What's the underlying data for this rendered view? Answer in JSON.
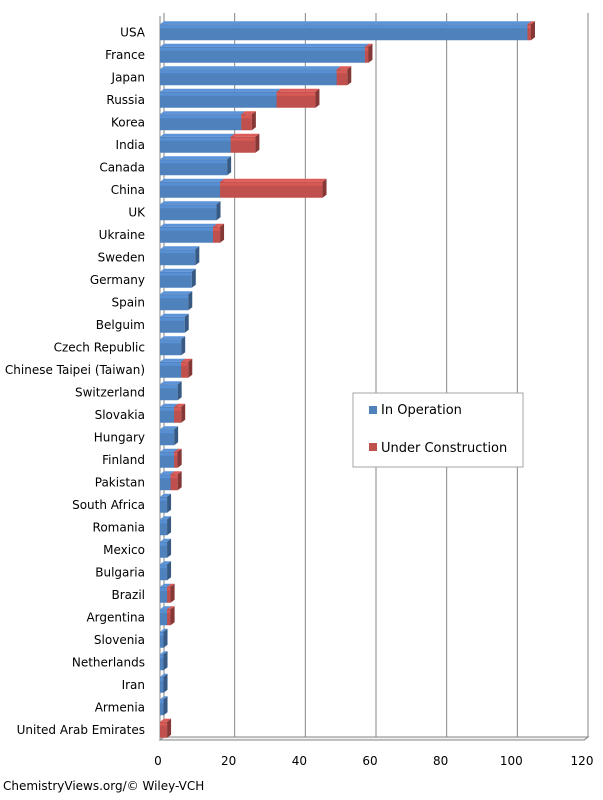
{
  "chart_data": {
    "type": "bar",
    "orientation": "horizontal",
    "stacked": true,
    "categories": [
      "USA",
      "France",
      "Japan",
      "Russia",
      "Korea",
      "India",
      "Canada",
      "China",
      "UK",
      "Ukraine",
      "Sweden",
      "Germany",
      "Spain",
      "Belguim",
      "Czech Republic",
      "Chinese Taipei (Taiwan)",
      "Switzerland",
      "Slovakia",
      "Hungary",
      "Finland",
      "Pakistan",
      "South Africa",
      "Romania",
      "Mexico",
      "Bulgaria",
      "Brazil",
      "Argentina",
      "Slovenia",
      "Netherlands",
      "Iran",
      "Armenia",
      "United Arab Emirates"
    ],
    "series": [
      {
        "name": "In Operation",
        "color": "#4f81bd",
        "values": [
          104,
          58,
          50,
          33,
          23,
          20,
          19,
          17,
          16,
          15,
          10,
          9,
          8,
          7,
          6,
          6,
          5,
          4,
          4,
          4,
          3,
          2,
          2,
          2,
          2,
          2,
          2,
          1,
          1,
          1,
          1,
          0
        ]
      },
      {
        "name": "Under Construction",
        "color": "#c0504d",
        "values": [
          1,
          1,
          3,
          11,
          3,
          7,
          0,
          29,
          0,
          2,
          0,
          0,
          0,
          0,
          0,
          2,
          0,
          2,
          0,
          1,
          2,
          0,
          0,
          0,
          0,
          1,
          1,
          0,
          0,
          0,
          0,
          2
        ]
      }
    ],
    "xlim": [
      0,
      120
    ],
    "xticks": [
      "0",
      "20",
      "40",
      "60",
      "80",
      "100",
      "120"
    ],
    "grid": true,
    "legend_position": "right"
  },
  "footer": "ChemistryViews.org/© Wiley-VCH"
}
